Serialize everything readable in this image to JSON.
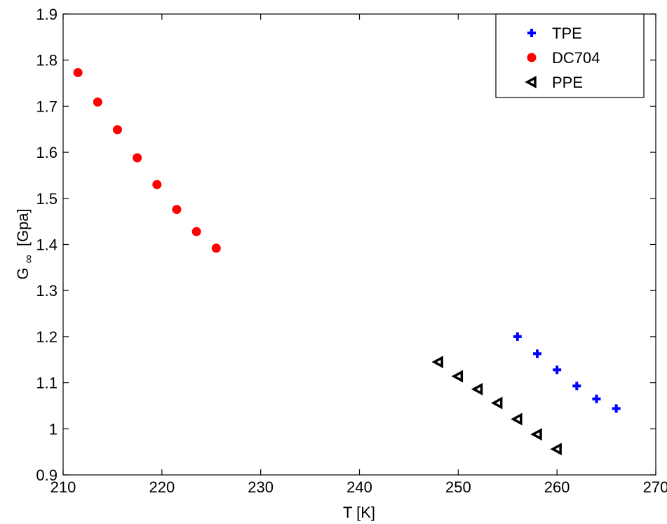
{
  "chart_data": {
    "type": "scatter",
    "xlabel": "T [K]",
    "ylabel_main": "G",
    "ylabel_sub": "∞",
    "ylabel_unit": "[Gpa]",
    "xlim": [
      210,
      270
    ],
    "ylim": [
      0.9,
      1.9
    ],
    "xticks": [
      "210",
      "220",
      "230",
      "240",
      "250",
      "260",
      "270"
    ],
    "yticks": [
      "0.9",
      "1",
      "1.1",
      "1.2",
      "1.3",
      "1.4",
      "1.5",
      "1.6",
      "1.7",
      "1.8",
      "1.9"
    ],
    "grid": false,
    "legend_position": "top-right",
    "series": [
      {
        "name": "TPE",
        "marker": "plus",
        "color": "#0000ff",
        "x": [
          256,
          258,
          260,
          262,
          264,
          266
        ],
        "y": [
          1.2,
          1.163,
          1.128,
          1.093,
          1.065,
          1.044
        ]
      },
      {
        "name": "DC704",
        "marker": "circle",
        "color": "#ff0000",
        "x": [
          211.5,
          213.5,
          215.5,
          217.5,
          219.5,
          221.5,
          223.5,
          225.5
        ],
        "y": [
          1.773,
          1.709,
          1.649,
          1.588,
          1.53,
          1.476,
          1.428,
          1.392
        ]
      },
      {
        "name": "PPE",
        "marker": "triangle-left",
        "color": "#000000",
        "x": [
          248,
          250,
          252,
          254,
          256,
          258,
          260
        ],
        "y": [
          1.145,
          1.114,
          1.086,
          1.056,
          1.021,
          0.988,
          0.956
        ]
      }
    ]
  }
}
